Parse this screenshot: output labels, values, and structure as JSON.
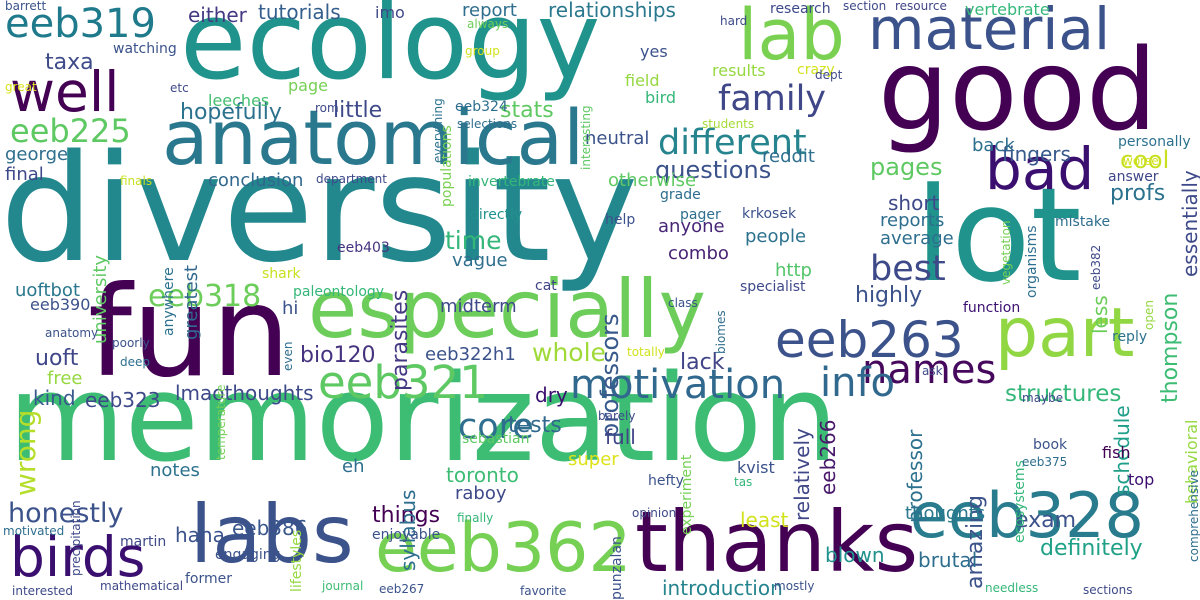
{
  "words": [
    {
      "text": "memorization",
      "color": "#3dbc74"
    },
    {
      "text": "diversity",
      "color": "#23888e"
    },
    {
      "text": "ecology",
      "color": "#20938c"
    },
    {
      "text": "good",
      "color": "#440154"
    },
    {
      "text": "fun",
      "color": "#440154"
    },
    {
      "text": "lot",
      "color": "#20938c"
    },
    {
      "text": "especially",
      "color": "#6ccd5a"
    },
    {
      "text": "anatomical",
      "color": "#2a788e"
    },
    {
      "text": "labs",
      "color": "#3b528b"
    },
    {
      "text": "thanks",
      "color": "#440154"
    },
    {
      "text": "eeb328",
      "color": "#287c8e"
    },
    {
      "text": "eeb362",
      "color": "#75d054"
    },
    {
      "text": "part",
      "color": "#90d743"
    },
    {
      "text": "lab",
      "color": "#7ad151"
    },
    {
      "text": "material",
      "color": "#3b528b"
    },
    {
      "text": "well",
      "color": "#440154"
    },
    {
      "text": "bad",
      "color": "#3b0f70"
    },
    {
      "text": "eeb263",
      "color": "#3b528b"
    },
    {
      "text": "birds",
      "color": "#3b0f70"
    },
    {
      "text": "eeb321",
      "color": "#5ec962"
    },
    {
      "text": "motivation",
      "color": "#31688e"
    },
    {
      "text": "eeb319",
      "color": "#1f7a8c"
    },
    {
      "text": "eeb318",
      "color": "#6ccd5a"
    },
    {
      "text": "names",
      "color": "#46085c"
    },
    {
      "text": "different",
      "color": "#25848e"
    },
    {
      "text": "family",
      "color": "#3f4788"
    },
    {
      "text": "eeb225",
      "color": "#5ec962"
    },
    {
      "text": "info",
      "color": "#31688e"
    },
    {
      "text": "best",
      "color": "#3e4989"
    },
    {
      "text": "core",
      "color": "#2e6e8e"
    },
    {
      "text": "honestly",
      "color": "#3b528b"
    },
    {
      "text": "wrong",
      "color": "#b5de2b"
    },
    {
      "text": "pages",
      "color": "#5ec962"
    },
    {
      "text": "questions",
      "color": "#3b528b"
    },
    {
      "text": "structures",
      "color": "#35b779"
    },
    {
      "text": "hopefully",
      "color": "#2c728e"
    },
    {
      "text": "taxa",
      "color": "#3e4a89"
    },
    {
      "text": "cool",
      "color": "#c8e020"
    },
    {
      "text": "exam",
      "color": "#3b528b"
    },
    {
      "text": "definitely",
      "color": "#1fa187"
    },
    {
      "text": "tests",
      "color": "#31688e"
    },
    {
      "text": "time",
      "color": "#35b779"
    },
    {
      "text": "amazing",
      "color": "#3b528b"
    },
    {
      "text": "professors",
      "color": "#38598c"
    },
    {
      "text": "profs",
      "color": "#2c728e"
    },
    {
      "text": "thompson",
      "color": "#3dbc74"
    },
    {
      "text": "parasites",
      "color": "#443983"
    },
    {
      "text": "whole",
      "color": "#a0da39"
    },
    {
      "text": "lmaothoughts",
      "color": "#3e4989"
    },
    {
      "text": "little",
      "color": "#3e4a89"
    },
    {
      "text": "stats",
      "color": "#5ec962"
    },
    {
      "text": "tutorials",
      "color": "#355f8d"
    },
    {
      "text": "relationships",
      "color": "#2a788e"
    },
    {
      "text": "either",
      "color": "#443983"
    },
    {
      "text": "report",
      "color": "#2e6e8e"
    },
    {
      "text": "fingers",
      "color": "#38598c"
    },
    {
      "text": "essentially",
      "color": "#3e4989"
    },
    {
      "text": "eeb386",
      "color": "#39568c"
    },
    {
      "text": "eeb323",
      "color": "#3e4989"
    },
    {
      "text": "uoft",
      "color": "#3f4788"
    },
    {
      "text": "bio120",
      "color": "#46337f"
    },
    {
      "text": "combo",
      "color": "#482374"
    },
    {
      "text": "people",
      "color": "#2c728e"
    },
    {
      "text": "highly",
      "color": "#3b528b"
    },
    {
      "text": "lack",
      "color": "#414487"
    },
    {
      "text": "raboy",
      "color": "#3e4989"
    },
    {
      "text": "least",
      "color": "#d2e21b"
    },
    {
      "text": "brutal",
      "color": "#2e6e8e"
    },
    {
      "text": "blown",
      "color": "#21918c"
    },
    {
      "text": "introduction",
      "color": "#25848e"
    },
    {
      "text": "schedule",
      "color": "#1f9e89"
    },
    {
      "text": "thoughts",
      "color": "#2a788e"
    },
    {
      "text": "eeb266",
      "color": "#48186a"
    },
    {
      "text": "relatively",
      "color": "#3f4788"
    },
    {
      "text": "professor",
      "color": "#2c728e"
    },
    {
      "text": "things",
      "color": "#440154"
    },
    {
      "text": "haha",
      "color": "#3b528b"
    },
    {
      "text": "toronto",
      "color": "#3dbc74"
    },
    {
      "text": "syllabus",
      "color": "#2e6e8e"
    },
    {
      "text": "super",
      "color": "#dde318"
    },
    {
      "text": "full",
      "color": "#414487"
    },
    {
      "text": "dry",
      "color": "#3b0f70"
    },
    {
      "text": "eh",
      "color": "#2e6e8e"
    },
    {
      "text": "notes",
      "color": "#2c728e"
    },
    {
      "text": "kind",
      "color": "#38598c"
    },
    {
      "text": "free",
      "color": "#95d840"
    },
    {
      "text": "hi",
      "color": "#3b528b"
    },
    {
      "text": "vague",
      "color": "#2e6e8e"
    },
    {
      "text": "anyone",
      "color": "#482677"
    },
    {
      "text": "http",
      "color": "#52c569"
    },
    {
      "text": "short",
      "color": "#3e4989"
    },
    {
      "text": "reports",
      "color": "#2e6e8e"
    },
    {
      "text": "average",
      "color": "#2e6e8e"
    },
    {
      "text": "less",
      "color": "#6ccd5a"
    },
    {
      "text": "behavioral",
      "color": "#95d840"
    },
    {
      "text": "personally",
      "color": "#2c728e"
    },
    {
      "text": "answer",
      "color": "#3f4788"
    },
    {
      "text": "conclusion",
      "color": "#31688e"
    },
    {
      "text": "final",
      "color": "#3e4989"
    },
    {
      "text": "george",
      "color": "#2e6e8e"
    },
    {
      "text": "university",
      "color": "#5ec962"
    },
    {
      "text": "greatest",
      "color": "#31688e"
    },
    {
      "text": "anywhere",
      "color": "#2c728e"
    },
    {
      "text": "uoftbot",
      "color": "#2a788e"
    },
    {
      "text": "eeb390",
      "color": "#3b528b"
    },
    {
      "text": "neutral",
      "color": "#3b528b"
    },
    {
      "text": "otherwise",
      "color": "#5ec962"
    },
    {
      "text": "back",
      "color": "#2e6e8e"
    },
    {
      "text": "reddit",
      "color": "#2e6e8e"
    },
    {
      "text": "results",
      "color": "#95d840"
    },
    {
      "text": "page",
      "color": "#75d054"
    },
    {
      "text": "watching",
      "color": "#3b528b"
    },
    {
      "text": "leeches",
      "color": "#44bf70"
    },
    {
      "text": "imo",
      "color": "#3e4989"
    },
    {
      "text": "populations",
      "color": "#7ad151"
    },
    {
      "text": "eeb324",
      "color": "#2e6e8e"
    },
    {
      "text": "selections",
      "color": "#2e6e8e"
    },
    {
      "text": "yes",
      "color": "#3b528b"
    },
    {
      "text": "field",
      "color": "#95d840"
    },
    {
      "text": "bird",
      "color": "#35b779"
    },
    {
      "text": "crazy",
      "color": "#d2e21b"
    },
    {
      "text": "dept",
      "color": "#3e4989"
    },
    {
      "text": "students",
      "color": "#a5db36"
    },
    {
      "text": "research",
      "color": "#3e4989"
    },
    {
      "text": "section",
      "color": "#3e4989"
    },
    {
      "text": "resource",
      "color": "#414487"
    },
    {
      "text": "vertebrate",
      "color": "#35b779"
    },
    {
      "text": "hard",
      "color": "#3e4989"
    },
    {
      "text": "always",
      "color": "#6ccd5a"
    },
    {
      "text": "group",
      "color": "#d2e21b"
    },
    {
      "text": "everything",
      "color": "#2c728e"
    },
    {
      "text": "interesting",
      "color": "#5ec962"
    },
    {
      "text": "great",
      "color": "#d8e219"
    },
    {
      "text": "etc",
      "color": "#3e4989"
    },
    {
      "text": "rom",
      "color": "#3e4989"
    },
    {
      "text": "barrett",
      "color": "#3b528b"
    },
    {
      "text": "finals",
      "color": "#c8e020"
    },
    {
      "text": "department",
      "color": "#3e4989"
    },
    {
      "text": "invertebrate",
      "color": "#35b779"
    },
    {
      "text": "directly",
      "color": "#21918c"
    },
    {
      "text": "grade",
      "color": "#2e6e8e"
    },
    {
      "text": "pager",
      "color": "#2e6e8e"
    },
    {
      "text": "krkosek",
      "color": "#3b528b"
    },
    {
      "text": "help",
      "color": "#3b528b"
    },
    {
      "text": "organisms",
      "color": "#2e6e8e"
    },
    {
      "text": "vegetation",
      "color": "#75d054"
    },
    {
      "text": "worse",
      "color": "#d2e21b"
    },
    {
      "text": "mistake",
      "color": "#2e6e8e"
    },
    {
      "text": "eeb382",
      "color": "#3e4989"
    },
    {
      "text": "specialist",
      "color": "#3e4989"
    },
    {
      "text": "cat",
      "color": "#414487"
    },
    {
      "text": "shark",
      "color": "#c8e020"
    },
    {
      "text": "paleontology",
      "color": "#35b779"
    },
    {
      "text": "eeb403",
      "color": "#46337f"
    },
    {
      "text": "midterm",
      "color": "#3e4989"
    },
    {
      "text": "eeb322h1",
      "color": "#3b528b"
    },
    {
      "text": "function",
      "color": "#3b0f70"
    },
    {
      "text": "open",
      "color": "#95d840"
    },
    {
      "text": "class",
      "color": "#3b528b"
    },
    {
      "text": "biomes",
      "color": "#2e6e8e"
    },
    {
      "text": "totally",
      "color": "#d2e21b"
    },
    {
      "text": "ask",
      "color": "#3e4989"
    },
    {
      "text": "maybe",
      "color": "#3e4989"
    },
    {
      "text": "reply",
      "color": "#2c728e"
    },
    {
      "text": "anatomy",
      "color": "#3b528b"
    },
    {
      "text": "poorly",
      "color": "#3b528b"
    },
    {
      "text": "deep",
      "color": "#2e6e8e"
    },
    {
      "text": "temperature",
      "color": "#75d054"
    },
    {
      "text": "even",
      "color": "#2e6e8e"
    },
    {
      "text": "barely",
      "color": "#3e4989"
    },
    {
      "text": "precipitation",
      "color": "#3e4989"
    },
    {
      "text": "sebastian",
      "color": "#5ec962"
    },
    {
      "text": "kvist",
      "color": "#3b528b"
    },
    {
      "text": "ecosystems",
      "color": "#35b779"
    },
    {
      "text": "book",
      "color": "#3b528b"
    },
    {
      "text": "eeb375",
      "color": "#2e6e8e"
    },
    {
      "text": "fish",
      "color": "#440154"
    },
    {
      "text": "top",
      "color": "#3b0f70"
    },
    {
      "text": "hefty",
      "color": "#3b528b"
    },
    {
      "text": "tas",
      "color": "#35b779"
    },
    {
      "text": "experiment",
      "color": "#75d054"
    },
    {
      "text": "opinion",
      "color": "#3e4989"
    },
    {
      "text": "comprehensive",
      "color": "#2e6e8e"
    },
    {
      "text": "engaging",
      "color": "#3b528b"
    },
    {
      "text": "lifestyles",
      "color": "#95d840"
    },
    {
      "text": "martin",
      "color": "#3e4989"
    },
    {
      "text": "enjoyable",
      "color": "#3b528b"
    },
    {
      "text": "finally",
      "color": "#35b779"
    },
    {
      "text": "punzalan",
      "color": "#3b528b"
    },
    {
      "text": "motivated",
      "color": "#2e6e8e"
    },
    {
      "text": "former",
      "color": "#3b528b"
    },
    {
      "text": "journal",
      "color": "#3dbc74"
    },
    {
      "text": "mathematical",
      "color": "#3e4989"
    },
    {
      "text": "eeb267",
      "color": "#3b528b"
    },
    {
      "text": "interested",
      "color": "#3e4989"
    },
    {
      "text": "favorite",
      "color": "#3b528b"
    },
    {
      "text": "mostly",
      "color": "#3b528b"
    },
    {
      "text": "needless",
      "color": "#35b779"
    },
    {
      "text": "sections",
      "color": "#3e4989"
    }
  ]
}
